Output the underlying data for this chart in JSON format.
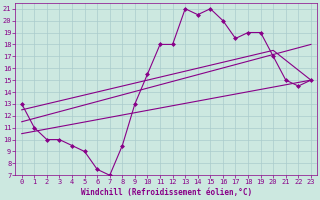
{
  "bg_color": "#cce8e0",
  "line_color": "#880088",
  "marker": "D",
  "markersize": 2.5,
  "linewidth": 0.8,
  "xlabel": "Windchill (Refroidissement éolien,°C)",
  "xlabel_fontsize": 5.5,
  "xlim": [
    -0.5,
    23.5
  ],
  "ylim": [
    7,
    21.5
  ],
  "xticks": [
    0,
    1,
    2,
    3,
    4,
    5,
    6,
    7,
    8,
    9,
    10,
    11,
    12,
    13,
    14,
    15,
    16,
    17,
    18,
    19,
    20,
    21,
    22,
    23
  ],
  "yticks": [
    7,
    8,
    9,
    10,
    11,
    12,
    13,
    14,
    15,
    16,
    17,
    18,
    19,
    20,
    21
  ],
  "grid_color": "#aacccc",
  "tick_fontsize": 5,
  "series1_x": [
    0,
    1,
    2,
    3,
    4,
    5,
    6,
    7,
    8,
    9,
    10,
    11,
    12,
    13,
    14,
    15,
    16,
    17,
    18,
    19,
    20,
    21,
    22,
    23
  ],
  "series1_y": [
    13,
    11,
    10,
    10,
    9.5,
    9,
    7.5,
    7,
    9.5,
    13,
    15.5,
    18,
    18,
    21,
    20.5,
    21,
    20,
    18.5,
    19,
    19,
    17,
    15,
    14.5,
    15
  ],
  "series2_x": [
    0,
    23
  ],
  "series2_y": [
    10.5,
    15
  ],
  "series3_x": [
    0,
    23
  ],
  "series3_y": [
    11.5,
    18.0
  ],
  "series4_x": [
    0,
    20,
    23
  ],
  "series4_y": [
    12.5,
    17.5,
    15
  ]
}
